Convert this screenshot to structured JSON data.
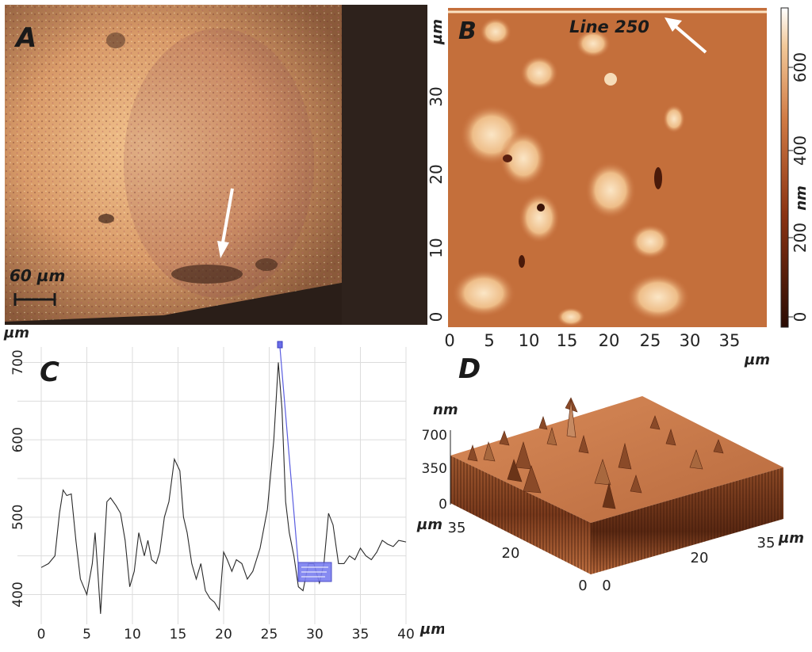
{
  "panels": {
    "a": {
      "label": "A",
      "scale_bar": "60 µm"
    },
    "b": {
      "label": "B",
      "line_label": "Line 250",
      "y_unit": "µm",
      "x_unit": "µm",
      "colorbar_unit": "nm",
      "x_ticks": [
        "0",
        "5",
        "10",
        "15",
        "20",
        "25",
        "30",
        "35"
      ],
      "y_ticks": [
        "0",
        "10",
        "20",
        "30"
      ],
      "colorbar_ticks": [
        "0",
        "200",
        "400",
        "600"
      ]
    },
    "c": {
      "label": "C",
      "y_unit": "µm",
      "x_unit": "µm",
      "x_ticks": [
        "0",
        "5",
        "10",
        "15",
        "20",
        "25",
        "30",
        "35",
        "40"
      ],
      "y_ticks": [
        "400",
        "500",
        "600",
        "700"
      ]
    },
    "d": {
      "label": "D",
      "z_unit": "nm",
      "z_ticks": [
        "700",
        "350",
        "0"
      ],
      "left_unit": "µm",
      "right_unit": "µm",
      "left_ticks": [
        "35",
        "20",
        "0"
      ],
      "right_ticks": [
        "35",
        "20",
        "0"
      ]
    }
  },
  "colors": {
    "optical_base": "#d89a68",
    "afm_base": "#c8703e",
    "afm_light": "#f4d2a4",
    "afm_dark": "#3b1408",
    "profile_line": "#2a2a2a",
    "selection": "#5a5de0"
  },
  "chart_data": {
    "type": "line",
    "title": "",
    "xlabel": "µm",
    "ylabel": "µm",
    "xlim": [
      0,
      40
    ],
    "ylim": [
      380,
      720
    ],
    "x": [
      0,
      0.8,
      1.5,
      2,
      2.4,
      2.8,
      3.3,
      3.8,
      4.3,
      5,
      5.6,
      5.9,
      6.2,
      6.5,
      6.9,
      7.2,
      7.6,
      8.2,
      8.7,
      9.2,
      9.7,
      10.2,
      10.7,
      11.3,
      11.7,
      12.1,
      12.6,
      13,
      13.5,
      14,
      14.6,
      15.2,
      15.6,
      16,
      16.5,
      17,
      17.5,
      18,
      18.5,
      19,
      19.5,
      20,
      20.4,
      20.9,
      21.4,
      22,
      22.6,
      23.2,
      24,
      24.8,
      25.5,
      26,
      26.4,
      26.8,
      27.2,
      27.7,
      28.2,
      28.7,
      29.3,
      29.9,
      30.5,
      31,
      31.5,
      32,
      32.6,
      33.2,
      33.8,
      34.4,
      35,
      35.6,
      36.2,
      36.8,
      37.4,
      38,
      38.6,
      39.2,
      40
    ],
    "series": [
      {
        "values": [
          435,
          440,
          450,
          505,
          535,
          528,
          530,
          470,
          420,
          400,
          440,
          480,
          430,
          375,
          460,
          520,
          525,
          515,
          505,
          470,
          410,
          430,
          480,
          450,
          470,
          445,
          440,
          455,
          500,
          520,
          575,
          560,
          500,
          480,
          440,
          420,
          440,
          405,
          395,
          390,
          380,
          455,
          445,
          430,
          445,
          440,
          420,
          430,
          460,
          510,
          600,
          700,
          640,
          520,
          480,
          450,
          410,
          405,
          440,
          440,
          415,
          440,
          505,
          490,
          440,
          440,
          450,
          445,
          460,
          450,
          445,
          455,
          470,
          465,
          462,
          470,
          468
        ]
      }
    ]
  }
}
